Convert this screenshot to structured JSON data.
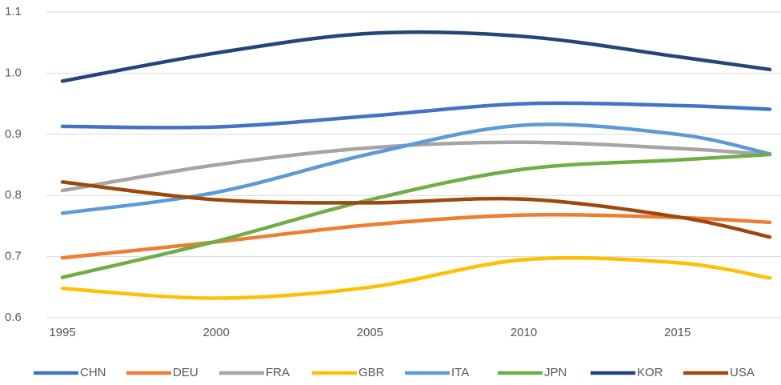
{
  "chart_data": {
    "type": "line",
    "x": [
      1995,
      2000,
      2005,
      2010,
      2015,
      2018
    ],
    "xlim": [
      1995,
      2018
    ],
    "xticks": [
      1995,
      2000,
      2005,
      2010,
      2015
    ],
    "ylim": [
      0.6,
      1.1
    ],
    "yticks": [
      0.6,
      0.7,
      0.8,
      0.9,
      {
        "value": 1,
        "label": "1.0"
      },
      1.1
    ],
    "grid": true,
    "smooth": true,
    "legend": "bottom",
    "series": [
      {
        "name": "CHN",
        "color": "#4472c4",
        "values": [
          0.913,
          0.912,
          0.93,
          0.95,
          0.947,
          0.941
        ]
      },
      {
        "name": "DEU",
        "color": "#ed7d31",
        "values": [
          0.698,
          0.724,
          0.752,
          0.768,
          0.764,
          0.756
        ]
      },
      {
        "name": "FRA",
        "color": "#a5a5a5",
        "values": [
          0.808,
          0.85,
          0.878,
          0.887,
          0.877,
          0.867
        ]
      },
      {
        "name": "GBR",
        "color": "#ffc000",
        "values": [
          0.648,
          0.632,
          0.65,
          0.695,
          0.69,
          0.665
        ]
      },
      {
        "name": "ITA",
        "color": "#5b9bd5",
        "values": [
          0.771,
          0.805,
          0.868,
          0.915,
          0.9,
          0.868
        ]
      },
      {
        "name": "JPN",
        "color": "#70ad47",
        "values": [
          0.666,
          0.725,
          0.793,
          0.843,
          0.858,
          0.867
        ]
      },
      {
        "name": "KOR",
        "color": "#264478",
        "values": [
          0.987,
          1.033,
          1.065,
          1.06,
          1.027,
          1.006
        ]
      },
      {
        "name": "USA",
        "color": "#9e480e",
        "values": [
          0.822,
          0.793,
          0.788,
          0.794,
          0.765,
          0.732
        ]
      }
    ]
  }
}
